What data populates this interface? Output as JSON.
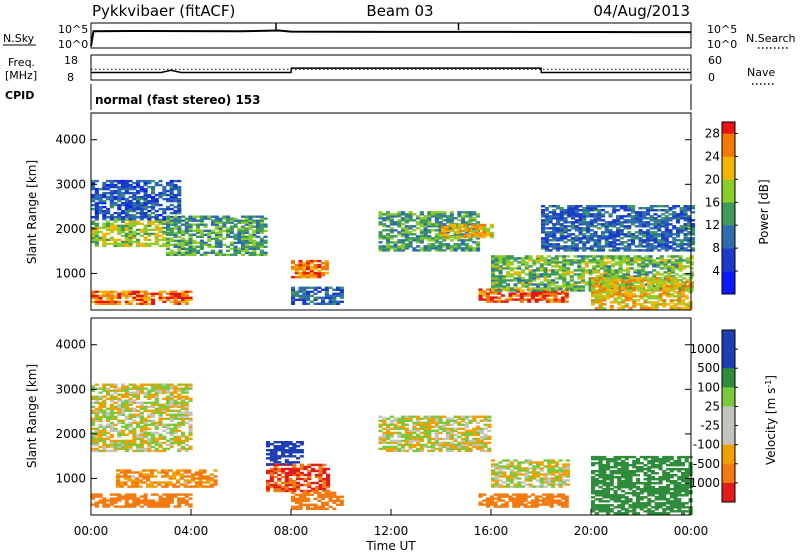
{
  "header": {
    "station": "Pykkvibaer (fitACF)",
    "beam": "Beam 03",
    "date": "04/Aug/2013"
  },
  "left_labels": {
    "nsky": "N.Sky",
    "freq_line1": "Freq.",
    "freq_line2": "[MHz]",
    "cpid": "CPID"
  },
  "right_labels": {
    "nsearch": "N.Search",
    "nave": "Nave"
  },
  "cpid_text": "normal (fast stereo) 153",
  "time_axis": {
    "label": "Time UT",
    "ticks": [
      "00:00",
      "04:00",
      "08:00",
      "12:00",
      "16:00",
      "20:00",
      "00:00"
    ]
  },
  "chart_data": [
    {
      "type": "line",
      "name": "noise",
      "yticks_left": [
        "10^5",
        "10^0"
      ],
      "yticks_right": [
        "10^5",
        "10^0"
      ],
      "series": [
        {
          "name": "N.Sky",
          "style": "solid",
          "x_hours": [
            0,
            0.1,
            2,
            4,
            6,
            7.5,
            8,
            10,
            12,
            14,
            16,
            18,
            20,
            22,
            24
          ],
          "value": [
            1,
            8000,
            9000,
            8500,
            8000,
            12000,
            6000,
            5500,
            5000,
            5200,
            5000,
            4800,
            4700,
            4600,
            4500
          ]
        }
      ]
    },
    {
      "type": "line",
      "name": "frequency",
      "yticks_left": [
        "18",
        "8"
      ],
      "yticks_right": [
        "60",
        "0"
      ],
      "series": [
        {
          "name": "Freq",
          "style": "solid",
          "x_hours": [
            0,
            2.8,
            3.2,
            3.6,
            8,
            8.01,
            18,
            18.01,
            24
          ],
          "value": [
            10.5,
            10.5,
            11.5,
            10.5,
            10.5,
            12.5,
            12.5,
            10.5,
            10.5
          ]
        },
        {
          "name": "Nave",
          "style": "dotted",
          "x_hours": [
            0,
            24
          ],
          "value": [
            24,
            24
          ]
        }
      ]
    },
    {
      "type": "heatmap",
      "title": "Power",
      "ylabel": "Slant Range [km]",
      "yticks": [
        1000,
        2000,
        3000,
        4000
      ],
      "ylim": [
        180,
        4600
      ],
      "xlim_hours": [
        0,
        24
      ],
      "colorbar": {
        "label": "Power [dB]",
        "ticks": [
          4,
          8,
          12,
          16,
          20,
          24,
          28
        ],
        "range": [
          0,
          30
        ]
      },
      "regions": [
        {
          "t": [
            0,
            4
          ],
          "r": [
            300,
            600
          ],
          "v": 26
        },
        {
          "t": [
            0,
            3
          ],
          "r": [
            1600,
            2200
          ],
          "v": 18
        },
        {
          "t": [
            0,
            3.5
          ],
          "r": [
            2200,
            3100
          ],
          "v": 8
        },
        {
          "t": [
            3,
            7
          ],
          "r": [
            1400,
            2300
          ],
          "v": 14
        },
        {
          "t": [
            8,
            9.5
          ],
          "r": [
            900,
            1300
          ],
          "v": 26
        },
        {
          "t": [
            8,
            10
          ],
          "r": [
            300,
            700
          ],
          "v": 10
        },
        {
          "t": [
            11.5,
            15.5
          ],
          "r": [
            1500,
            2400
          ],
          "v": 14
        },
        {
          "t": [
            14,
            16
          ],
          "r": [
            1800,
            2100
          ],
          "v": 22
        },
        {
          "t": [
            15.5,
            19
          ],
          "r": [
            350,
            650
          ],
          "v": 28
        },
        {
          "t": [
            16,
            24
          ],
          "r": [
            600,
            1400
          ],
          "v": 16
        },
        {
          "t": [
            18,
            24
          ],
          "r": [
            1500,
            2500
          ],
          "v": 9
        },
        {
          "t": [
            20,
            24
          ],
          "r": [
            200,
            900
          ],
          "v": 22
        }
      ]
    },
    {
      "type": "heatmap",
      "title": "Velocity",
      "ylabel": "Slant Range [km]",
      "yticks": [
        1000,
        2000,
        3000,
        4000
      ],
      "ylim": [
        180,
        4600
      ],
      "xlim_hours": [
        0,
        24
      ],
      "colorbar": {
        "label": "Velocity [m s-1]",
        "ticks": [
          "1000",
          "500",
          "100",
          "25",
          "-25",
          "-100",
          "-500",
          "-1000"
        ]
      },
      "regions": [
        {
          "t": [
            0,
            4
          ],
          "r": [
            350,
            650
          ],
          "v": -300
        },
        {
          "t": [
            1,
            5
          ],
          "r": [
            800,
            1200
          ],
          "v": -120
        },
        {
          "t": [
            0,
            4
          ],
          "r": [
            1600,
            3100
          ],
          "v": 0
        },
        {
          "t": [
            7,
            9.5
          ],
          "r": [
            700,
            1300
          ],
          "v": -500
        },
        {
          "t": [
            7,
            8.5
          ],
          "r": [
            1300,
            1800
          ],
          "v": 600
        },
        {
          "t": [
            8,
            10
          ],
          "r": [
            300,
            700
          ],
          "v": -200
        },
        {
          "t": [
            11.5,
            16
          ],
          "r": [
            1600,
            2400
          ],
          "v": 0
        },
        {
          "t": [
            15.5,
            19
          ],
          "r": [
            350,
            650
          ],
          "v": -300
        },
        {
          "t": [
            16,
            19
          ],
          "r": [
            800,
            1400
          ],
          "v": 0
        },
        {
          "t": [
            20,
            24
          ],
          "r": [
            200,
            1500
          ],
          "v": 400
        }
      ]
    }
  ]
}
